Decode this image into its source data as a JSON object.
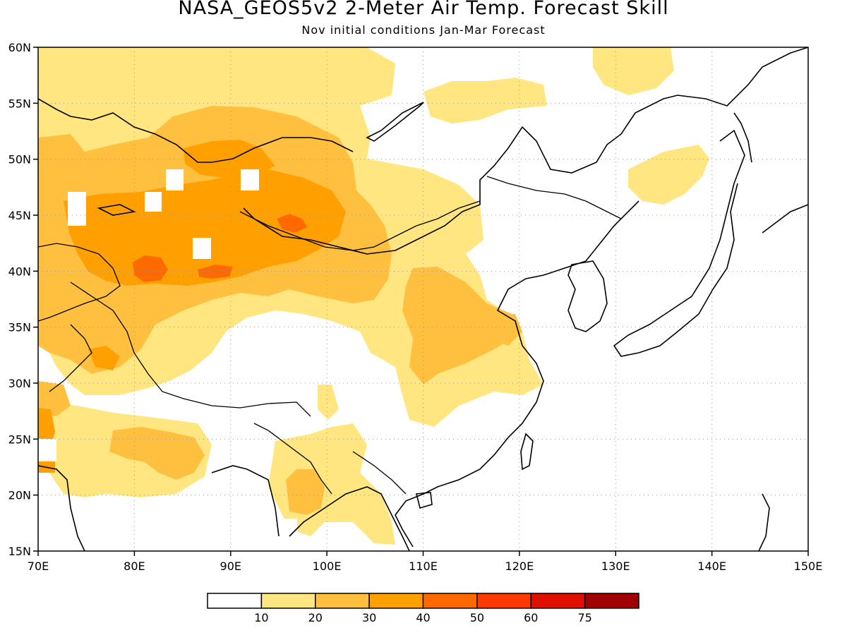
{
  "header": {
    "title": "NASA_GEOS5v2 2-Meter Air Temp. Forecast Skill",
    "subtitle": "Nov initial conditions  Jan-Mar Forecast"
  },
  "map": {
    "lon_range": [
      70,
      150
    ],
    "lat_range": [
      15,
      60
    ],
    "lon_ticks": [
      "70E",
      "80E",
      "90E",
      "100E",
      "110E",
      "120E",
      "130E",
      "140E",
      "150E"
    ],
    "lat_ticks": [
      "15N",
      "20N",
      "25N",
      "30N",
      "35N",
      "40N",
      "45N",
      "50N",
      "55N",
      "60N"
    ],
    "grid": "dotted"
  },
  "colorbar": {
    "labels": [
      "10",
      "20",
      "30",
      "40",
      "50",
      "60",
      "75"
    ],
    "colors": [
      "#ffffff",
      "#ffe680",
      "#ffc040",
      "#ffa000",
      "#ff6a00",
      "#ff3a00",
      "#e01000",
      "#a00000"
    ]
  }
}
